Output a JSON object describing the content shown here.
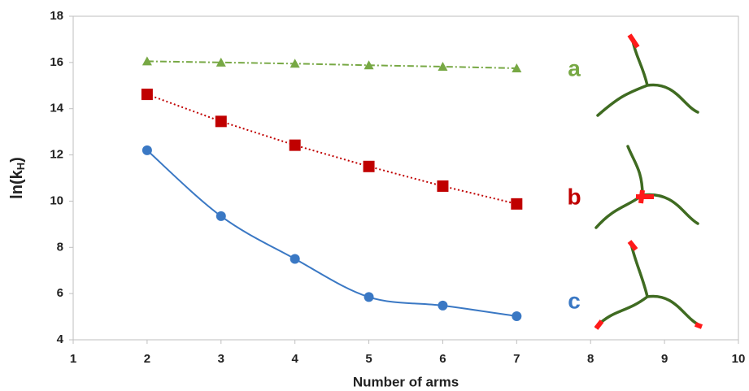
{
  "chart_data": {
    "type": "line",
    "x_label": "Number of arms",
    "y_label_parts": [
      "ln(k",
      "H",
      ")"
    ],
    "xlim": [
      1,
      10
    ],
    "xticks": [
      1,
      2,
      3,
      4,
      5,
      6,
      7,
      8,
      9,
      10
    ],
    "ylim": [
      4,
      18
    ],
    "yticks": [
      4,
      6,
      8,
      10,
      12,
      14,
      16,
      18
    ],
    "x": [
      2,
      3,
      4,
      5,
      6,
      7
    ],
    "series": [
      {
        "name": "a",
        "color": "#77a844",
        "marker": "triangle",
        "dash": "8 3 2 3",
        "smooth": false,
        "values": [
          16.05,
          16.0,
          15.95,
          15.88,
          15.82,
          15.75
        ]
      },
      {
        "name": "b",
        "color": "#c00000",
        "marker": "square",
        "dash": "2 3",
        "smooth": false,
        "values": [
          14.62,
          13.45,
          12.42,
          11.5,
          10.65,
          9.88
        ]
      },
      {
        "name": "c",
        "color": "#3a78c4",
        "marker": "circle",
        "dash": "",
        "smooth": true,
        "values": [
          12.2,
          9.35,
          7.5,
          5.85,
          5.48,
          5.02
        ]
      }
    ]
  }
}
